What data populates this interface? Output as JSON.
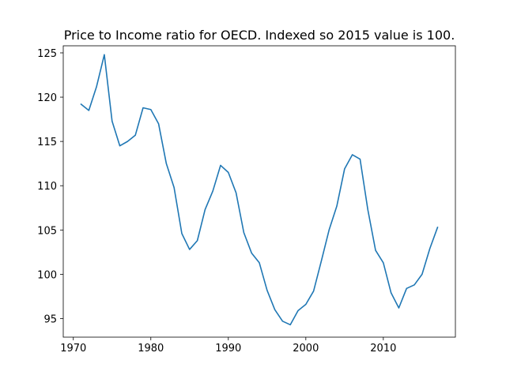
{
  "chart_data": {
    "type": "line",
    "title": "Price to Income ratio for OECD. Indexed so 2015 value is 100.",
    "xlabel": "",
    "ylabel": "",
    "xlim": [
      1968.7,
      2019.3
    ],
    "ylim": [
      92.9,
      125.8
    ],
    "xticks": [
      1970,
      1980,
      1990,
      2000,
      2010
    ],
    "yticks": [
      95,
      100,
      105,
      110,
      115,
      120,
      125
    ],
    "grid": false,
    "legend": "none",
    "series": [
      {
        "color": "#1f77b4",
        "x": [
          1971,
          1972,
          1973,
          1974,
          1975,
          1976,
          1977,
          1978,
          1979,
          1980,
          1981,
          1982,
          1983,
          1984,
          1985,
          1986,
          1987,
          1988,
          1989,
          1990,
          1991,
          1992,
          1993,
          1994,
          1995,
          1996,
          1997,
          1998,
          1999,
          2000,
          2001,
          2002,
          2003,
          2004,
          2005,
          2006,
          2007,
          2008,
          2009,
          2010,
          2011,
          2012,
          2013,
          2014,
          2015,
          2016,
          2017
        ],
        "values": [
          119.2,
          118.5,
          121.2,
          124.8,
          117.3,
          114.5,
          115.0,
          115.7,
          118.8,
          118.6,
          117.0,
          112.5,
          109.8,
          104.6,
          102.8,
          103.8,
          107.3,
          109.4,
          112.3,
          111.5,
          109.2,
          104.7,
          102.4,
          101.3,
          98.2,
          96.0,
          94.7,
          94.3,
          95.9,
          96.6,
          98.1,
          101.5,
          105.0,
          107.7,
          111.9,
          113.5,
          113.0,
          107.3,
          102.7,
          101.3,
          97.9,
          96.2,
          98.4,
          98.8,
          100.0,
          102.9,
          105.3
        ]
      }
    ]
  }
}
